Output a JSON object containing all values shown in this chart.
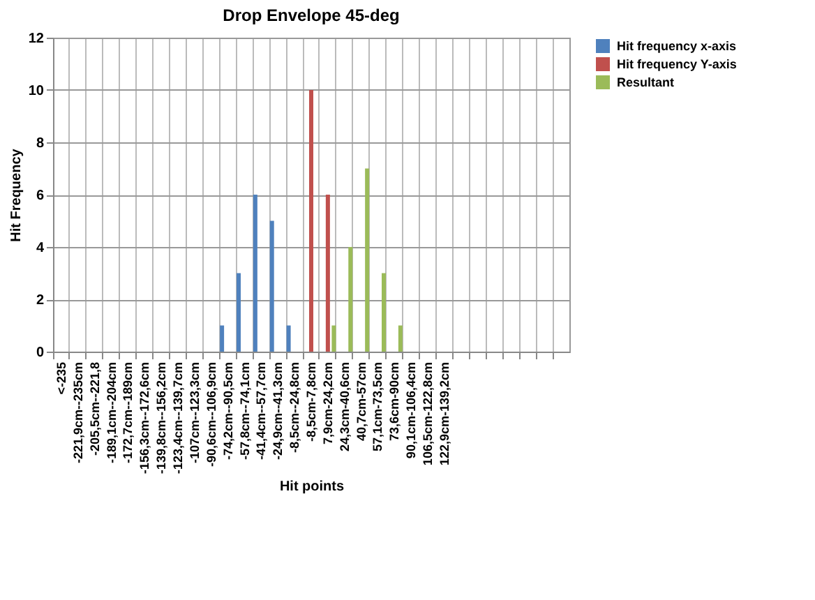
{
  "chart_data": {
    "type": "bar",
    "title": "Drop Envelope 45-deg",
    "xlabel": "Hit points",
    "ylabel": "Hit Frequency",
    "categories": [
      "<-235",
      "-221,9cm--235cm",
      "-205,5cm--221,8",
      "-189,1cm--204cm",
      "-172,7cm--189cm",
      "-156,3cm--172,6cm",
      "-139,8cm--156,2cm",
      "-123,4cm--139,7cm",
      "-107cm--123,3cm",
      "-90,6cm--106,9cm",
      "-74,2cm--90,5cm",
      "-57,8cm--74,1cm",
      "-41,4cm--57,7cm",
      "-24,9cm--41,3cm",
      "-8,5cm--24,8cm",
      "-8,5cm-7,8cm",
      "7,9cm-24,2cm",
      "24,3cm-40,6cm",
      "40,7cm-57cm",
      "57,1cm-73,5cm",
      "73,6cm-90cm",
      "90,1cm-106,4cm",
      "106,5cm-122,8cm",
      "122,9cm-139,2cm",
      null,
      null,
      null,
      null,
      null,
      null,
      null
    ],
    "series": [
      {
        "name": "Hit frequency x-axis",
        "color": "#4f81bd",
        "values": [
          0,
          0,
          0,
          0,
          0,
          0,
          0,
          0,
          0,
          0,
          1,
          3,
          6,
          5,
          1,
          0,
          0,
          0,
          0,
          0,
          0,
          0,
          0,
          0,
          0,
          0,
          0,
          0,
          0,
          0,
          0
        ]
      },
      {
        "name": "Hit frequency Y-axis",
        "color": "#c0504d",
        "values": [
          0,
          0,
          0,
          0,
          0,
          0,
          0,
          0,
          0,
          0,
          0,
          0,
          0,
          0,
          0,
          10,
          6,
          0,
          0,
          0,
          0,
          0,
          0,
          0,
          0,
          0,
          0,
          0,
          0,
          0,
          0
        ]
      },
      {
        "name": "Resultant",
        "color": "#9bbb59",
        "values": [
          0,
          0,
          0,
          0,
          0,
          0,
          0,
          0,
          0,
          0,
          0,
          0,
          0,
          0,
          0,
          0,
          1,
          4,
          7,
          3,
          1,
          0,
          0,
          0,
          0,
          0,
          0,
          0,
          0,
          0,
          0
        ]
      }
    ],
    "ylim": [
      0,
      12
    ],
    "yticks": [
      0,
      2,
      4,
      6,
      8,
      10,
      12
    ],
    "grid": true,
    "legend": "right"
  }
}
